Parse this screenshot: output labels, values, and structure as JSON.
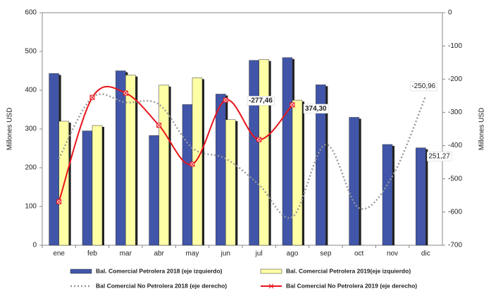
{
  "chart_data": {
    "type": "bar-line",
    "categories": [
      "ene",
      "feb",
      "mar",
      "abr",
      "may",
      "jun",
      "jul",
      "ago",
      "sep",
      "oct",
      "nov",
      "dic"
    ],
    "y_label": "Millones USD",
    "y2_label": "Millones USD",
    "ylim": [
      0,
      600
    ],
    "yticks": [
      0,
      100,
      200,
      300,
      400,
      500,
      600
    ],
    "y2lim": [
      -700,
      0
    ],
    "y2ticks": [
      -700,
      -600,
      -500,
      -400,
      -300,
      -200,
      -100,
      0
    ],
    "series": [
      {
        "name": "Bal. Comercial Petrolera 2018 (eje izquierdo)",
        "type": "bar",
        "color": "#4156a8",
        "values": [
          443,
          295,
          450,
          283,
          363,
          390,
          477,
          484,
          414,
          330,
          260,
          251.27
        ],
        "value_labels": [
          null,
          null,
          null,
          null,
          null,
          null,
          null,
          null,
          null,
          null,
          null,
          "251,27"
        ]
      },
      {
        "name": "Bal. Comercial Petrolera 2019(eje izquierdo)",
        "type": "bar",
        "color": "#ffffa6",
        "values": [
          320,
          309,
          439,
          413,
          432,
          324,
          479,
          374.3,
          null,
          null,
          null,
          null
        ],
        "value_labels": [
          null,
          null,
          null,
          null,
          null,
          null,
          null,
          "374,30",
          null,
          null,
          null,
          null
        ]
      },
      {
        "name": "Bal Comercial No Petrolera 2018 (eje derecho)",
        "type": "line",
        "axis": "y2",
        "color": "#9a9a9a",
        "dashed": true,
        "values": [
          -439,
          -255,
          -270,
          -276,
          -407,
          -439,
          -518,
          -615,
          -397,
          -588,
          -492,
          -250.96
        ],
        "value_labels": [
          null,
          null,
          null,
          null,
          null,
          null,
          null,
          null,
          null,
          null,
          null,
          "-250,96"
        ]
      },
      {
        "name": "Bal Comercial No Petrolera 2019 (eje derecho)",
        "type": "line",
        "axis": "y2",
        "color": "#e8141c",
        "marker": "x",
        "values": [
          -569,
          -255,
          -242,
          -339,
          -456,
          -263,
          -382,
          -277.46,
          null,
          null,
          null,
          null
        ],
        "value_labels": [
          null,
          null,
          null,
          null,
          null,
          null,
          null,
          "-277,46",
          null,
          null,
          null,
          null
        ]
      }
    ]
  }
}
